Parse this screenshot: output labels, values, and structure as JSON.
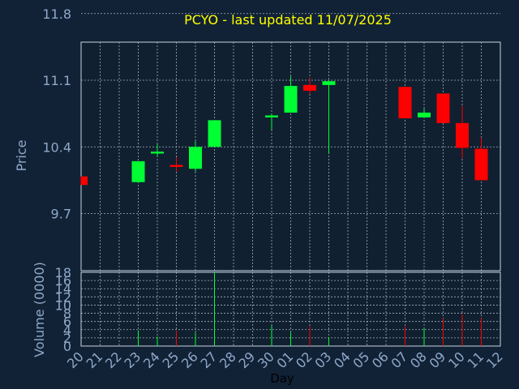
{
  "title": "PCYO - last updated 11/07/2025",
  "colors": {
    "background": "#112236",
    "panel": "#102030",
    "grid": "#c8d4e0",
    "axis_text": "#8fa8c8",
    "title": "#ffff00",
    "up": "#00ff33",
    "down": "#ff0000",
    "xlabel": "#000000"
  },
  "chart_data": [
    {
      "type": "candlestick",
      "ylabel": "Price",
      "ylim": [
        9.1,
        11.5
      ],
      "yticks": [
        9.7,
        10.4,
        11.1,
        11.8
      ],
      "ytick_labels": [
        "9.7",
        "10.4",
        "11.1",
        "11.8"
      ],
      "categories": [
        "20",
        "21",
        "22",
        "23",
        "24",
        "25",
        "26",
        "27",
        "28",
        "29",
        "30",
        "01",
        "02",
        "03",
        "04",
        "05",
        "06",
        "07",
        "08",
        "09",
        "10",
        "11",
        "12"
      ],
      "grid": true,
      "candles": [
        {
          "x": "20",
          "open": 10.09,
          "high": 10.09,
          "low": 10.0,
          "close": 10.0
        },
        {
          "x": "23",
          "open": 10.03,
          "high": 10.25,
          "low": 10.03,
          "close": 10.25
        },
        {
          "x": "24",
          "open": 10.33,
          "high": 10.43,
          "low": 10.3,
          "close": 10.35
        },
        {
          "x": "25",
          "open": 10.21,
          "high": 10.29,
          "low": 10.14,
          "close": 10.19
        },
        {
          "x": "26",
          "open": 10.17,
          "high": 10.46,
          "low": 10.14,
          "close": 10.4
        },
        {
          "x": "27",
          "open": 10.4,
          "high": 10.68,
          "low": 10.4,
          "close": 10.68
        },
        {
          "x": "30",
          "open": 10.71,
          "high": 10.75,
          "low": 10.58,
          "close": 10.73
        },
        {
          "x": "01",
          "open": 10.76,
          "high": 11.14,
          "low": 10.76,
          "close": 11.04
        },
        {
          "x": "02",
          "open": 11.05,
          "high": 11.13,
          "low": 10.96,
          "close": 10.99
        },
        {
          "x": "03",
          "open": 11.05,
          "high": 11.1,
          "low": 10.33,
          "close": 11.09
        },
        {
          "x": "07",
          "open": 11.03,
          "high": 11.03,
          "low": 10.7,
          "close": 10.7
        },
        {
          "x": "08",
          "open": 10.71,
          "high": 10.8,
          "low": 10.71,
          "close": 10.76
        },
        {
          "x": "09",
          "open": 10.96,
          "high": 10.96,
          "low": 10.65,
          "close": 10.65
        },
        {
          "x": "10",
          "open": 10.65,
          "high": 10.83,
          "low": 10.28,
          "close": 10.39
        },
        {
          "x": "11",
          "open": 10.38,
          "high": 10.5,
          "low": 10.05,
          "close": 10.05
        }
      ]
    },
    {
      "type": "bar",
      "ylabel": "Volume (0000)",
      "xlabel": "Day",
      "ylim": [
        0,
        18
      ],
      "yticks": [
        0,
        2,
        4,
        6,
        8,
        10,
        12,
        14,
        16,
        18
      ],
      "ytick_labels": [
        "0",
        "2",
        "4",
        "6",
        "8",
        "10",
        "12",
        "14",
        "16",
        "18"
      ],
      "categories": [
        "20",
        "21",
        "22",
        "23",
        "24",
        "25",
        "26",
        "27",
        "28",
        "29",
        "30",
        "01",
        "02",
        "03",
        "04",
        "05",
        "06",
        "07",
        "08",
        "09",
        "10",
        "11",
        "12"
      ],
      "grid": true,
      "bars": [
        {
          "x": "23",
          "value": 3.8,
          "dir": "up"
        },
        {
          "x": "24",
          "value": 2.3,
          "dir": "up"
        },
        {
          "x": "25",
          "value": 3.8,
          "dir": "down"
        },
        {
          "x": "26",
          "value": 3.3,
          "dir": "up"
        },
        {
          "x": "27",
          "value": 18.0,
          "dir": "up"
        },
        {
          "x": "30",
          "value": 5.0,
          "dir": "up"
        },
        {
          "x": "01",
          "value": 3.4,
          "dir": "up"
        },
        {
          "x": "02",
          "value": 4.8,
          "dir": "down"
        },
        {
          "x": "03",
          "value": 2.2,
          "dir": "up"
        },
        {
          "x": "07",
          "value": 4.8,
          "dir": "down"
        },
        {
          "x": "08",
          "value": 4.4,
          "dir": "up"
        },
        {
          "x": "09",
          "value": 6.8,
          "dir": "down"
        },
        {
          "x": "10",
          "value": 7.8,
          "dir": "down"
        },
        {
          "x": "11",
          "value": 6.8,
          "dir": "down"
        }
      ]
    }
  ]
}
